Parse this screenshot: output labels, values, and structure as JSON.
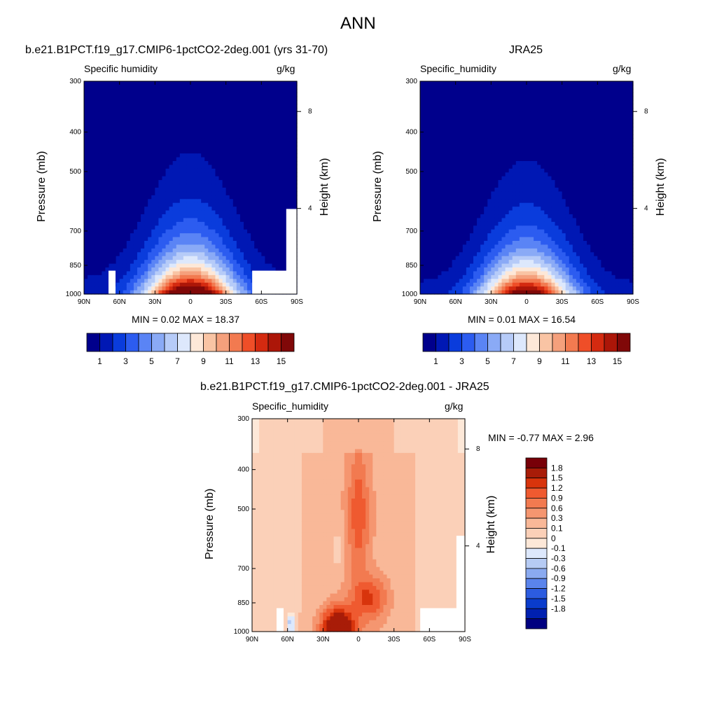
{
  "main_title": "ANN",
  "panels": {
    "top_left": {
      "title": "b.e21.B1PCT.f19_g17.CMIP6-1pctCO2-2deg.001 (yrs 31-70)",
      "var_label": "Specific humidity",
      "units": "g/kg",
      "ylabel": "Pressure (mb)",
      "y2label": "Height (km)",
      "minmax": "MIN =   0.02  MAX =  18.37"
    },
    "top_right": {
      "title": "JRA25",
      "var_label": "Specific_humidity",
      "units": "g/kg",
      "ylabel": "Pressure (mb)",
      "y2label": "Height (km)",
      "minmax": "MIN =   0.01  MAX =  16.54"
    },
    "bottom": {
      "title": "b.e21.B1PCT.f19_g17.CMIP6-1pctCO2-2deg.001 - JRA25",
      "var_label": "Specific_humidity",
      "units": "g/kg",
      "ylabel": "Pressure (mb)",
      "y2label": "Height (km)",
      "minmax": "MIN =  -0.77  MAX =   2.96"
    }
  },
  "colors": {
    "abs_scale": [
      "#00008c",
      "#0018b4",
      "#0a3cdc",
      "#2c5cf0",
      "#5a84f5",
      "#8aaaf6",
      "#b6cbf8",
      "#dde8fc",
      "#fde8d8",
      "#f9c4a4",
      "#f5a07c",
      "#f27a50",
      "#ef4e28",
      "#d42a10",
      "#ac1608",
      "#800808"
    ],
    "diff_scale": [
      "#000080",
      "#0020b0",
      "#0a3ccc",
      "#2c5ce0",
      "#5a84ec",
      "#8aaaf0",
      "#b6cbf4",
      "#dde8fc",
      "#fde8d8",
      "#fbd0b8",
      "#f9b898",
      "#f59670",
      "#f27a50",
      "#ef5a30",
      "#d8340c",
      "#a81c08",
      "#780008"
    ]
  },
  "chart_data": [
    {
      "type": "heatmap",
      "panel": "top_left",
      "x_ticks": [
        "90N",
        "60N",
        "30N",
        "0",
        "30S",
        "60S",
        "90S"
      ],
      "y_ticks": [
        "300",
        "400",
        "500",
        "700",
        "850",
        "1000"
      ],
      "y2_ticks": [
        "8",
        "4"
      ],
      "ylim": [
        1000,
        300
      ],
      "xlim": [
        "90N",
        "90S"
      ],
      "vmin": 0.02,
      "vmax": 18.37,
      "peak_value": 18.37
    },
    {
      "type": "heatmap",
      "panel": "top_right",
      "x_ticks": [
        "90N",
        "60N",
        "30N",
        "0",
        "30S",
        "60S",
        "90S"
      ],
      "y_ticks": [
        "300",
        "400",
        "500",
        "700",
        "850",
        "1000"
      ],
      "y2_ticks": [
        "8",
        "4"
      ],
      "ylim": [
        1000,
        300
      ],
      "xlim": [
        "90N",
        "90S"
      ],
      "vmin": 0.01,
      "vmax": 16.54,
      "peak_value": 16.54
    },
    {
      "type": "heatmap",
      "panel": "bottom",
      "x_ticks": [
        "90N",
        "60N",
        "30N",
        "0",
        "30S",
        "60S",
        "90S"
      ],
      "y_ticks": [
        "300",
        "400",
        "500",
        "700",
        "850",
        "1000"
      ],
      "y2_ticks": [
        "8",
        "4"
      ],
      "ylim": [
        1000,
        300
      ],
      "xlim": [
        "90N",
        "90S"
      ],
      "vmin": -0.77,
      "vmax": 2.96
    }
  ],
  "colorbars": {
    "abs_labels": [
      "1",
      "3",
      "5",
      "7",
      "9",
      "11",
      "13",
      "15"
    ],
    "diff_labels": [
      "1.8",
      "1.5",
      "1.2",
      "0.9",
      "0.6",
      "0.3",
      "0.1",
      "0",
      "-0.1",
      "-0.3",
      "-0.6",
      "-0.9",
      "-1.2",
      "-1.5",
      "-1.8"
    ]
  }
}
